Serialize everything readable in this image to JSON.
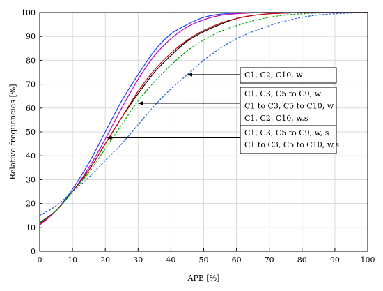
{
  "chart_data": {
    "type": "line",
    "xlabel": "APE [%]",
    "ylabel": "Relative frequencies [%]",
    "xlim": [
      0,
      100
    ],
    "ylim": [
      0,
      100
    ],
    "x_ticks": [
      "0",
      "10",
      "20",
      "30",
      "40",
      "50",
      "60",
      "70",
      "80",
      "90",
      "100"
    ],
    "y_ticks": [
      "0",
      "10",
      "20",
      "30",
      "40",
      "50",
      "60",
      "70",
      "80",
      "90",
      "100"
    ],
    "grid": true,
    "series": [
      {
        "color": "#1f3fff",
        "style": "solid",
        "x": [
          0,
          5,
          10,
          15,
          20,
          25,
          30,
          35,
          40,
          45,
          50,
          55,
          60,
          65,
          70,
          80,
          90,
          100
        ],
        "y": [
          11,
          17,
          26,
          37,
          50,
          63,
          74,
          84,
          91,
          95,
          98,
          99.3,
          99.8,
          100,
          100,
          100,
          100,
          100
        ]
      },
      {
        "color": "#c000c0",
        "style": "solid",
        "x": [
          0,
          5,
          10,
          15,
          20,
          25,
          30,
          35,
          40,
          45,
          50,
          55,
          60,
          65,
          70,
          80,
          90,
          100
        ],
        "y": [
          11,
          17,
          25,
          35,
          47,
          60,
          72,
          82,
          89,
          94,
          97,
          98.8,
          99.5,
          99.9,
          100,
          100,
          100,
          100
        ]
      },
      {
        "color": "#000000",
        "style": "solid",
        "x": [
          0,
          5,
          10,
          15,
          20,
          25,
          30,
          35,
          40,
          45,
          50,
          55,
          60,
          65,
          70,
          75,
          80,
          90,
          100
        ],
        "y": [
          12,
          17,
          25,
          34,
          45,
          56,
          66,
          75,
          82,
          88,
          92,
          95,
          97.5,
          98.8,
          99.5,
          99.8,
          100,
          100,
          100
        ]
      },
      {
        "color": "#d00000",
        "style": "solid",
        "x": [
          0,
          5,
          10,
          15,
          20,
          25,
          30,
          35,
          40,
          45,
          50,
          55,
          60,
          65,
          70,
          75,
          80,
          90,
          100
        ],
        "y": [
          11.5,
          17,
          25,
          34,
          45,
          56,
          67,
          76,
          83,
          88.5,
          92.5,
          95.5,
          97.5,
          98.8,
          99.5,
          99.8,
          100,
          100,
          100
        ]
      },
      {
        "color": "#00a000",
        "style": "dashed",
        "x": [
          0,
          5,
          10,
          15,
          20,
          25,
          30,
          35,
          40,
          45,
          50,
          55,
          60,
          65,
          70,
          75,
          80,
          85,
          90,
          100
        ],
        "y": [
          12,
          17,
          25,
          33,
          43,
          53,
          63,
          71,
          78,
          84,
          88.5,
          92,
          94.5,
          96.5,
          98,
          99,
          99.5,
          99.8,
          100,
          100
        ]
      },
      {
        "color": "#1f60d0",
        "style": "dashed",
        "x": [
          0,
          5,
          10,
          15,
          20,
          25,
          30,
          35,
          40,
          45,
          50,
          55,
          60,
          65,
          70,
          75,
          80,
          85,
          90,
          95,
          100
        ],
        "y": [
          15,
          19,
          25,
          31,
          38,
          45,
          53,
          61,
          68,
          74,
          80,
          85,
          89,
          92,
          94.5,
          96.5,
          98,
          99,
          99.5,
          99.8,
          100
        ]
      }
    ],
    "annotations": [
      {
        "lines": [
          "C1, C2, C10, w"
        ],
        "target": [
          45,
          74
        ]
      },
      {
        "lines": [
          "C1, C3, C5 to C9, w",
          "C1 to C3, C5 to C10, w",
          "C1, C2, C10, w,s"
        ],
        "target": [
          30,
          62
        ]
      },
      {
        "lines": [
          "C1, C3, C5 to C9, w, s",
          "C1 to C3, C5 to C10, w,s"
        ],
        "target": [
          20.5,
          47.5
        ]
      }
    ]
  }
}
